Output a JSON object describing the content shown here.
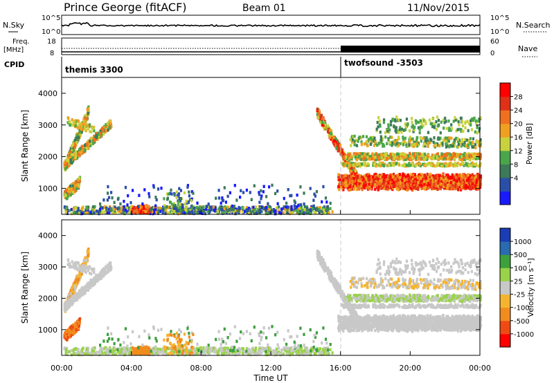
{
  "header": {
    "radar": "Prince George (fitACF)",
    "beam": "Beam 01",
    "date": "11/Nov/2015"
  },
  "strip_labels": {
    "left_nsky": "N.Sky",
    "left_freq_line1": "Freq.",
    "left_freq_line2": "[MHz]",
    "left_cpid": "CPID",
    "right_nsearch": "N.Search",
    "right_nave": "Nave",
    "noise_ticks_left": [
      "10^5",
      "10^0"
    ],
    "noise_ticks_right": [
      "10^5",
      "10^0"
    ],
    "freq_ticks_left": [
      "18",
      "8"
    ],
    "freq_ticks_right": [
      "60",
      "0"
    ]
  },
  "cpid": {
    "segments": [
      {
        "name": "themis 3300",
        "start_hour": 0
      },
      {
        "name": "twofsound -3503",
        "start_hour": 16
      }
    ]
  },
  "colors": {
    "power_scale": [
      "#1a1aff",
      "#2a4fa8",
      "#3c7a5a",
      "#4aa64a",
      "#c8d23c",
      "#f0a020",
      "#f07020",
      "#e03018",
      "#ff0000"
    ],
    "velocity_scale": [
      "#ff0000",
      "#f04a14",
      "#f08c1e",
      "#f5b430",
      "#c8c8c8",
      "#9ad24a",
      "#3ca03c",
      "#2a6ab0",
      "#1a3cb4"
    ]
  },
  "chart_data": [
    {
      "type": "heatmap",
      "title": "",
      "ylabel": "Slant Range [km]",
      "xlabel": "",
      "xlim": [
        0,
        24
      ],
      "ylim": [
        180,
        4500
      ],
      "yticks": [
        "4000",
        "3000",
        "2000",
        "1000"
      ],
      "colorbar": {
        "label": "Power [dB]",
        "range": [
          0,
          32
        ],
        "ticks": [
          "28",
          "24",
          "20",
          "16",
          "12",
          "8",
          "4"
        ]
      }
    },
    {
      "type": "heatmap",
      "title": "",
      "ylabel": "Slant Range [km]",
      "xlabel": "Time UT",
      "xlim": [
        0,
        24
      ],
      "ylim": [
        180,
        4500
      ],
      "yticks": [
        "4000",
        "3000",
        "2000",
        "1000"
      ],
      "xticks": [
        "00:00",
        "04:00",
        "08:00",
        "12:00",
        "16:00",
        "20:00",
        "00:00"
      ],
      "colorbar": {
        "label": "Velocity [m s⁻¹]",
        "ticks": [
          "1000",
          "500",
          "100",
          "25",
          "-25",
          "-100",
          "-500",
          "-1000"
        ]
      }
    }
  ]
}
